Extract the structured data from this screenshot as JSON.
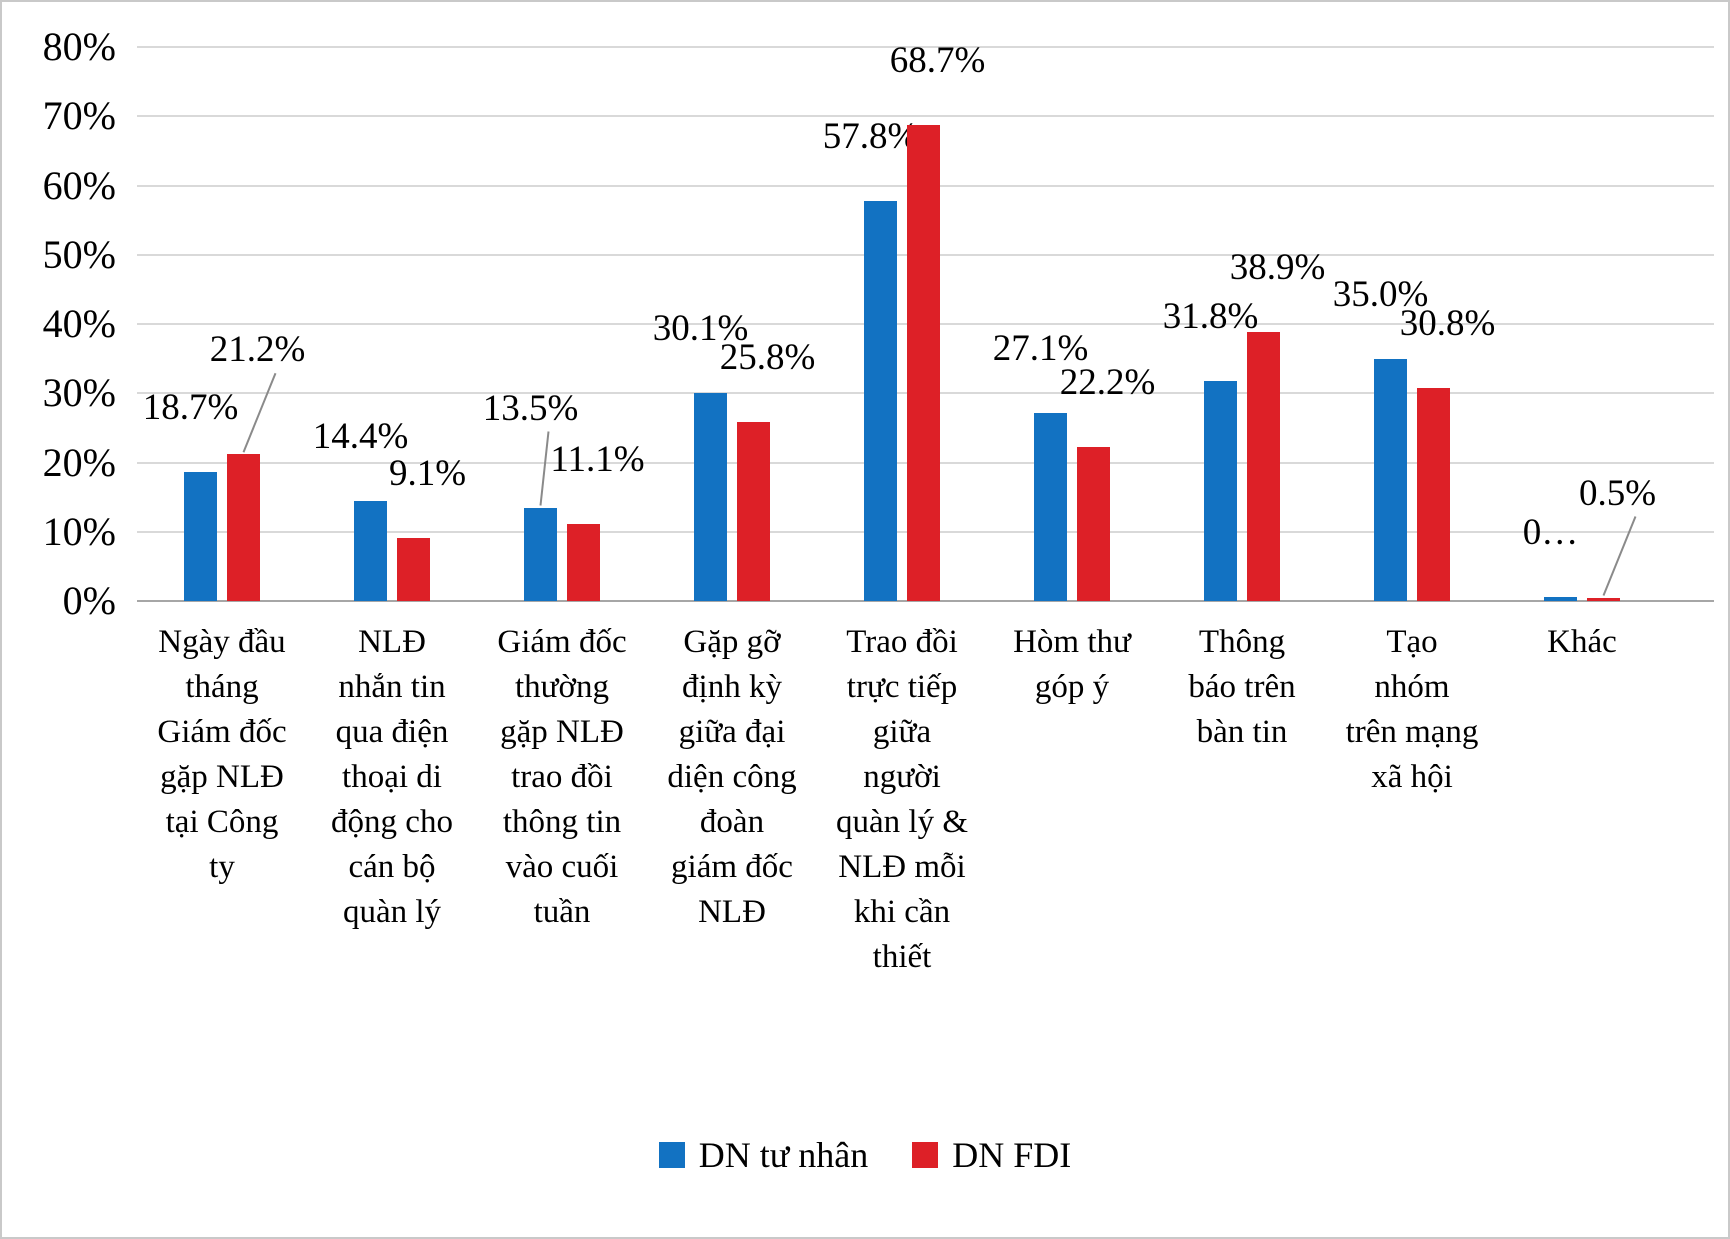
{
  "chart_data": {
    "type": "bar",
    "title": "",
    "xlabel": "",
    "ylabel": "",
    "ylim": [
      0,
      80
    ],
    "grid": true,
    "legend_position": "bottom",
    "yticks": [
      {
        "label": "0%",
        "value": 0
      },
      {
        "label": "10%",
        "value": 10
      },
      {
        "label": "20%",
        "value": 20
      },
      {
        "label": "30%",
        "value": 30
      },
      {
        "label": "40%",
        "value": 40
      },
      {
        "label": "50%",
        "value": 50
      },
      {
        "label": "60%",
        "value": 60
      },
      {
        "label": "70%",
        "value": 70
      },
      {
        "label": "80%",
        "value": 80
      }
    ],
    "categories": [
      "Ngày đầu tháng Giám đốc gặp NLĐ tại Công ty",
      "NLĐ nhắn tin qua điện thoại di động cho cán bộ quàn lý",
      "Giám đốc thường gặp NLĐ trao đồi thông tin vào cuối tuần",
      "Gặp gỡ định kỳ giữa đại diện công đoàn giám đốc NLĐ",
      "Trao đồi trực tiếp giữa người quàn lý & NLĐ mỗi khi cần thiết",
      "Hòm thư góp ý",
      "Thông báo trên bàn tin",
      "Tạo nhóm trên mạng xã hội",
      "Khác"
    ],
    "series": [
      {
        "name": "DN tư nhân",
        "color": "#1272C2",
        "values": [
          18.7,
          14.4,
          13.5,
          30.1,
          57.8,
          27.1,
          31.8,
          35.0,
          0.6
        ],
        "labels": [
          "18.7%",
          "14.4%",
          "13.5%",
          "30.1%",
          "57.8%",
          "27.1%",
          "31.8%",
          "35.0%",
          "0…"
        ],
        "label_dy": [
          0,
          0,
          -35,
          0,
          0,
          0,
          0,
          0,
          0
        ],
        "leaders": [
          false,
          false,
          true,
          false,
          false,
          false,
          false,
          false,
          false
        ]
      },
      {
        "name": "DN FDI",
        "color": "#DD2027",
        "values": [
          21.2,
          9.1,
          11.1,
          25.8,
          68.7,
          22.2,
          38.9,
          30.8,
          0.5
        ],
        "labels": [
          "21.2%",
          "9.1%",
          "11.1%",
          "25.8%",
          "68.7%",
          "22.2%",
          "38.9%",
          "30.8%",
          "0.5%"
        ],
        "label_dy": [
          -40,
          0,
          0,
          0,
          0,
          0,
          0,
          0,
          -40
        ],
        "leaders": [
          true,
          false,
          false,
          false,
          false,
          false,
          false,
          false,
          true
        ]
      }
    ]
  }
}
